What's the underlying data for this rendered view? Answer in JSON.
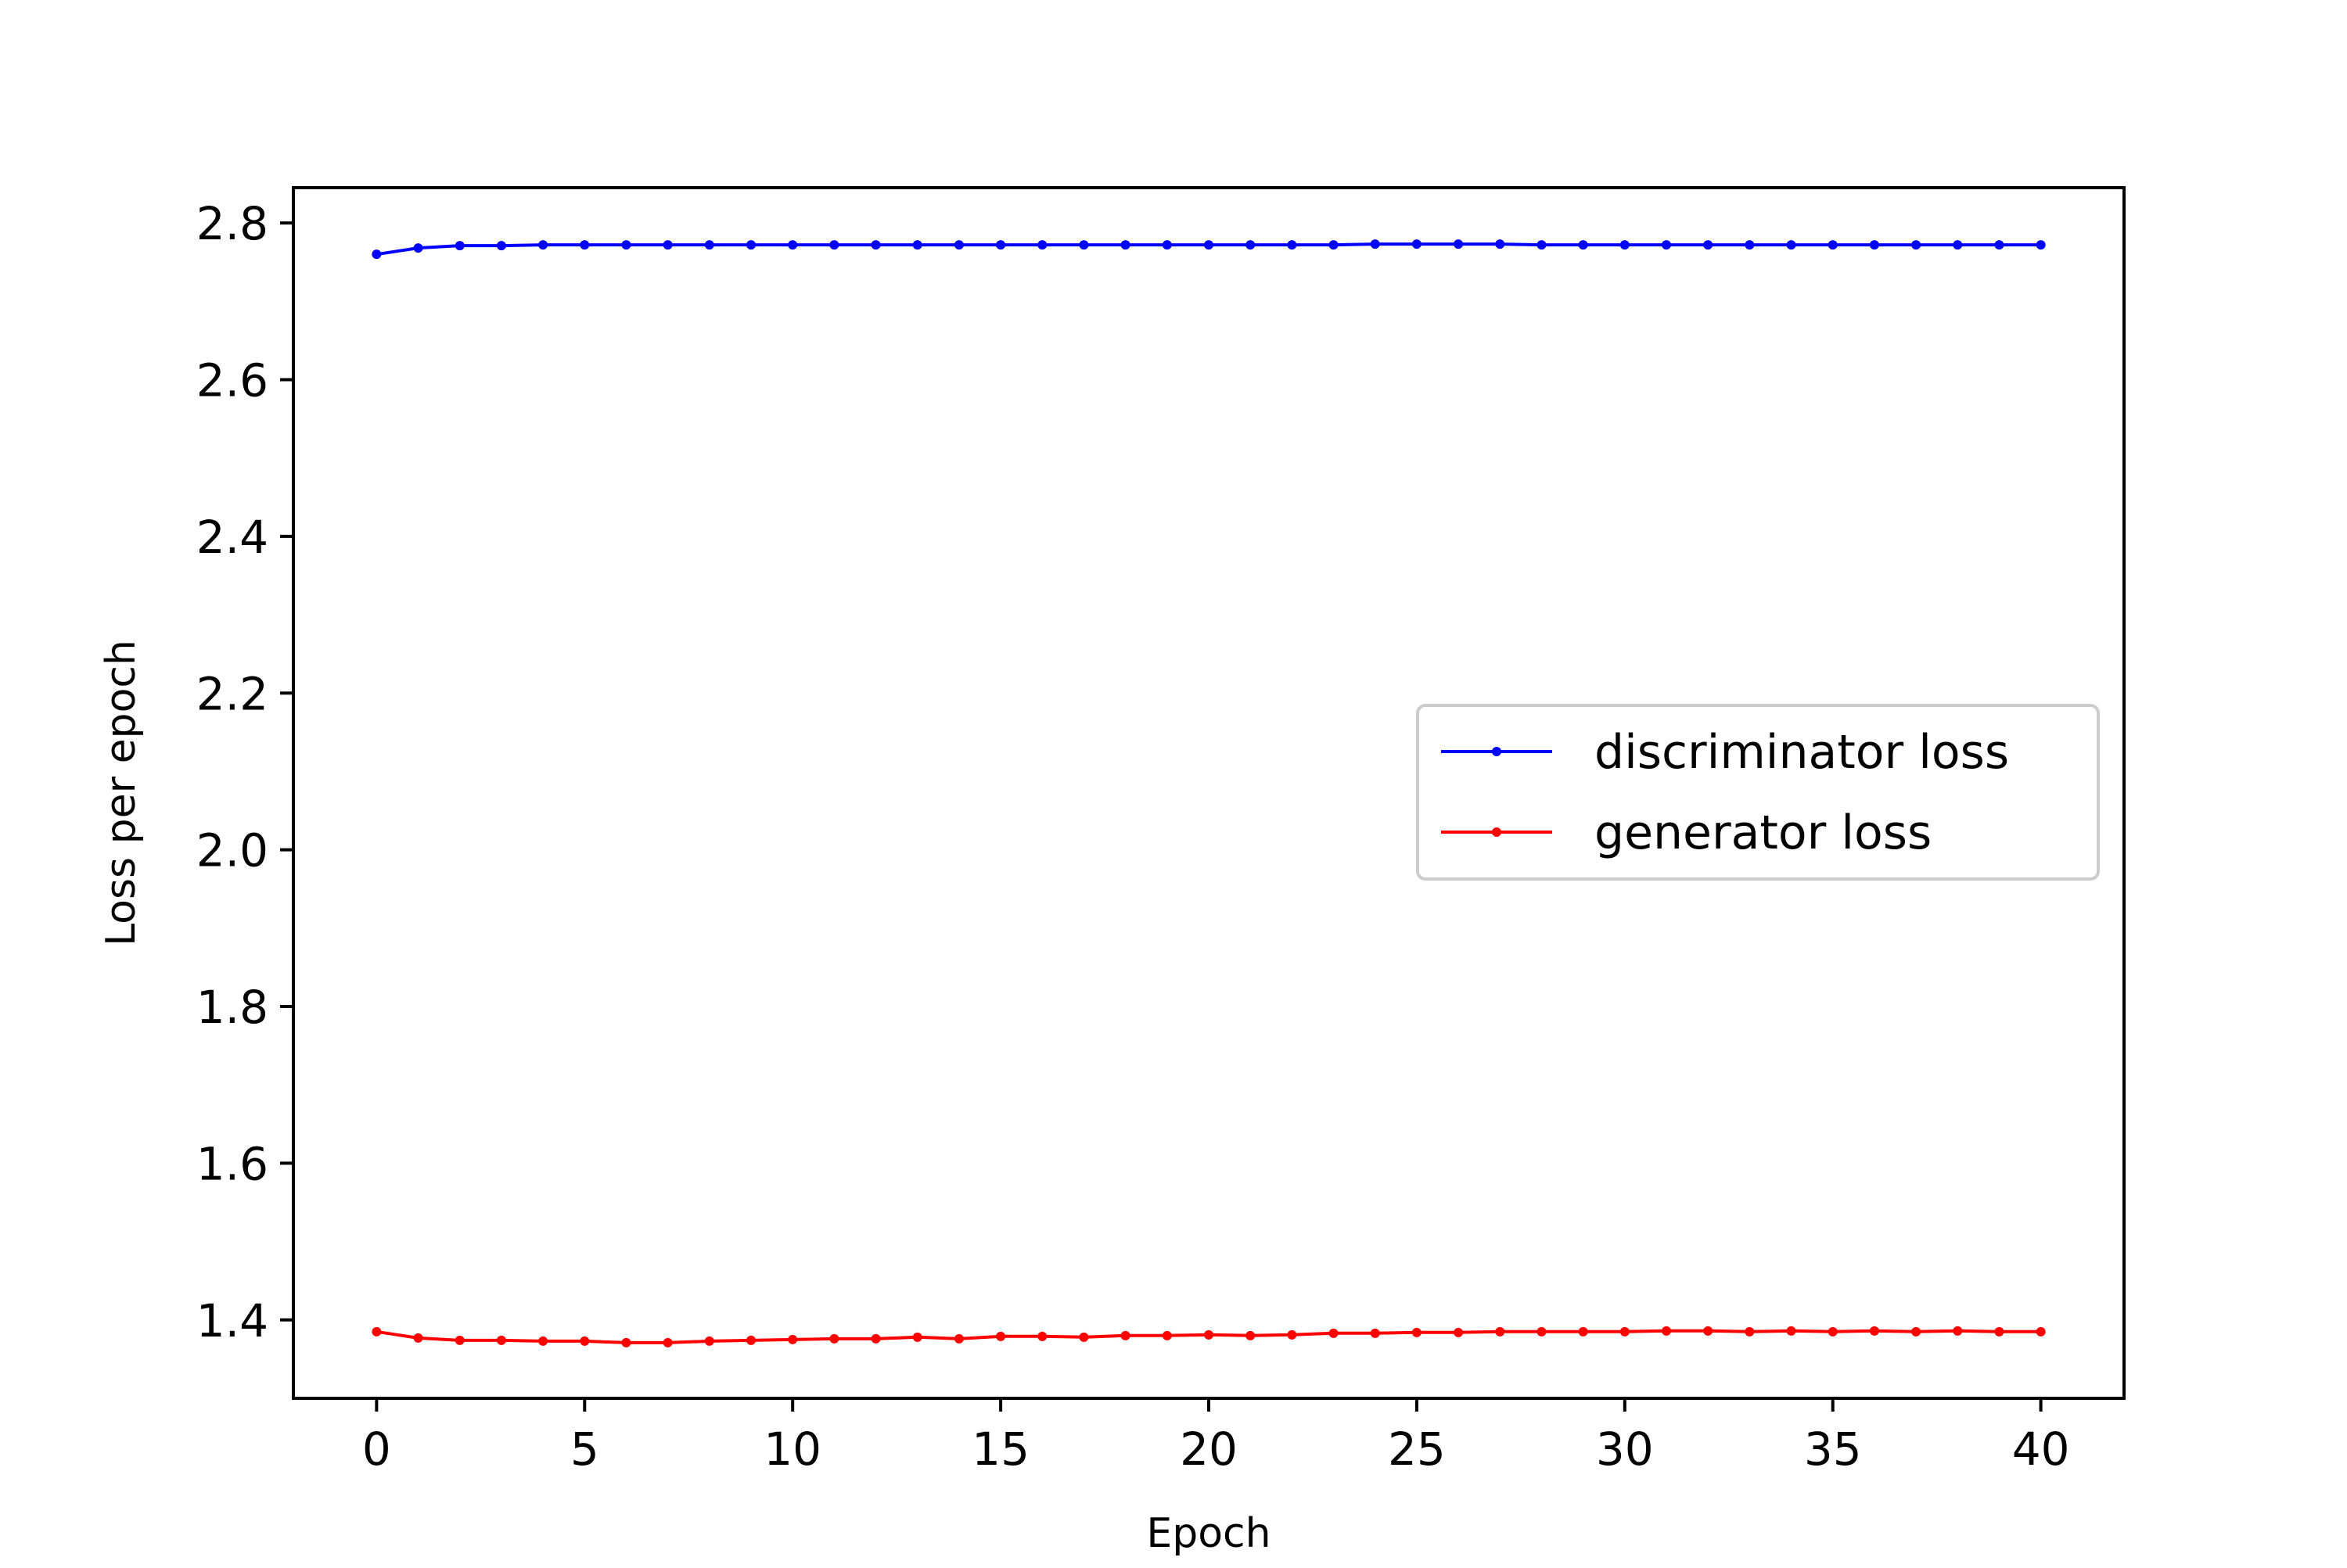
{
  "chart_data": {
    "type": "line",
    "title": "",
    "xlabel": "Epoch",
    "ylabel": "Loss per epoch",
    "xlim": [
      -2,
      42
    ],
    "ylim": [
      1.3,
      2.845
    ],
    "xticks": [
      0,
      5,
      10,
      15,
      20,
      25,
      30,
      35,
      40
    ],
    "xtick_labels": [
      "0",
      "5",
      "10",
      "15",
      "20",
      "25",
      "30",
      "35",
      "40"
    ],
    "yticks": [
      1.4,
      1.6,
      1.8,
      2.0,
      2.2,
      2.4,
      2.6,
      2.8
    ],
    "ytick_labels": [
      "1.4",
      "1.6",
      "1.8",
      "2.0",
      "2.2",
      "2.4",
      "2.6",
      "2.8"
    ],
    "grid": false,
    "legend_position": "center-right",
    "x": [
      0,
      1,
      2,
      3,
      4,
      5,
      6,
      7,
      8,
      9,
      10,
      11,
      12,
      13,
      14,
      15,
      16,
      17,
      18,
      19,
      20,
      21,
      22,
      23,
      24,
      25,
      26,
      27,
      28,
      29,
      30,
      31,
      32,
      33,
      34,
      35,
      36,
      37,
      38,
      39,
      40
    ],
    "series": [
      {
        "name": "discriminator loss",
        "color": "#0000ff",
        "marker": "dot",
        "values": [
          2.76,
          2.768,
          2.771,
          2.771,
          2.772,
          2.772,
          2.772,
          2.772,
          2.772,
          2.772,
          2.772,
          2.772,
          2.772,
          2.772,
          2.772,
          2.772,
          2.772,
          2.772,
          2.772,
          2.772,
          2.772,
          2.772,
          2.772,
          2.772,
          2.773,
          2.773,
          2.773,
          2.773,
          2.772,
          2.772,
          2.772,
          2.772,
          2.772,
          2.772,
          2.772,
          2.772,
          2.772,
          2.772,
          2.772,
          2.772,
          2.772
        ]
      },
      {
        "name": "generator loss",
        "color": "#ff0000",
        "marker": "dot",
        "values": [
          1.385,
          1.377,
          1.374,
          1.374,
          1.373,
          1.373,
          1.371,
          1.371,
          1.373,
          1.374,
          1.375,
          1.376,
          1.376,
          1.378,
          1.376,
          1.379,
          1.379,
          1.378,
          1.38,
          1.38,
          1.381,
          1.38,
          1.381,
          1.383,
          1.383,
          1.384,
          1.384,
          1.385,
          1.385,
          1.385,
          1.385,
          1.386,
          1.386,
          1.385,
          1.386,
          1.385,
          1.386,
          1.385,
          1.386,
          1.385,
          1.385
        ]
      }
    ]
  }
}
